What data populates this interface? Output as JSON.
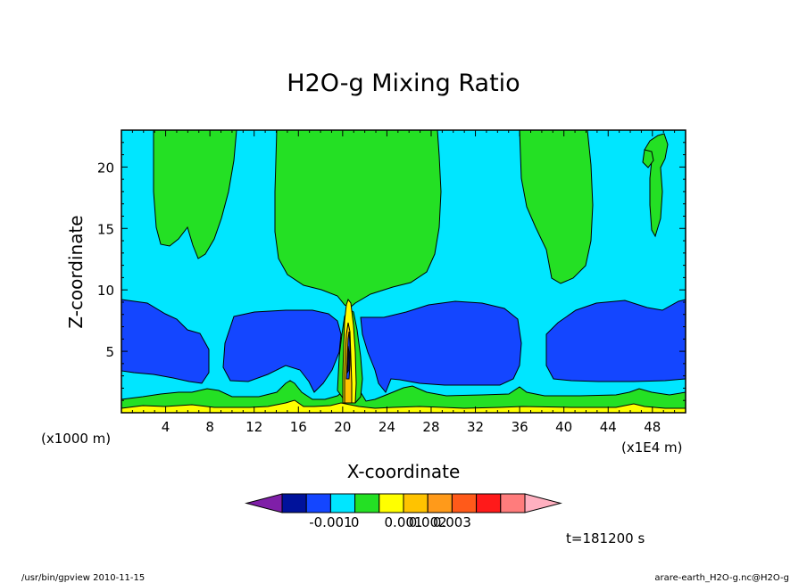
{
  "chart_data": {
    "type": "contour",
    "title": "H2O-g Mixing Ratio",
    "xlabel": "X-coordinate",
    "ylabel": "Z-coordinate",
    "x_unit": "(x1E4 m)",
    "y_unit": "(x1000 m)",
    "xlim": [
      0,
      51
    ],
    "ylim": [
      0,
      23
    ],
    "x_ticks": [
      4,
      8,
      12,
      16,
      20,
      24,
      28,
      32,
      36,
      40,
      44,
      48
    ],
    "y_ticks": [
      5,
      10,
      15,
      20
    ],
    "colorbar": {
      "colors": [
        "#7f1fa8",
        "#00129b",
        "#1446ff",
        "#00e6ff",
        "#24e024",
        "#ffff00",
        "#ffc300",
        "#ff9a1a",
        "#ff5a1a",
        "#ff1a1a",
        "#ff7c7c",
        "#ffb0c0"
      ],
      "tick_labels": [
        "-0.001",
        "0",
        "0.001",
        "0.002",
        "0.003"
      ]
    },
    "time_label": "t=181200 s",
    "regions": {
      "green_upper_plumes_x": [
        [
          3,
          10
        ],
        [
          14,
          29
        ],
        [
          36,
          42
        ],
        [
          47,
          49
        ]
      ],
      "blue_low_lobes_x": [
        [
          0,
          8
        ],
        [
          9,
          19
        ],
        [
          22,
          36
        ],
        [
          38,
          51
        ]
      ],
      "blue_low_lobe_z": [
        2.5,
        9
      ],
      "central_column_x": 20.3,
      "central_column_top_z": 9
    }
  },
  "footer": {
    "left": "/usr/bin/gpview   2010-11-15",
    "right": "arare-earth_H2O-g.nc@H2O-g"
  }
}
